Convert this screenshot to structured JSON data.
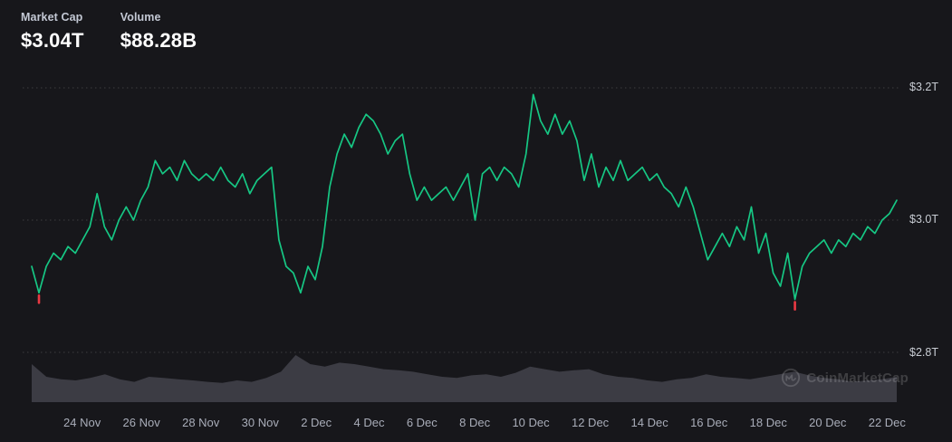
{
  "header": {
    "market_cap_label": "Market Cap",
    "market_cap_value": "$3.04T",
    "volume_label": "Volume",
    "volume_value": "$88.28B"
  },
  "watermark": {
    "text": "CoinMarketCap"
  },
  "chart_data": {
    "type": "line",
    "title": "Total cryptocurrency market capitalization with volume, 23 Nov - 22 Dec",
    "grid": "dotted horizontal lines, labels on right",
    "legend_position": "none",
    "x_tick_labels": [
      "24 Nov",
      "26 Nov",
      "28 Nov",
      "30 Nov",
      "2 Dec",
      "4 Dec",
      "6 Dec",
      "8 Dec",
      "10 Dec",
      "12 Dec",
      "14 Dec",
      "16 Dec",
      "18 Dec",
      "20 Dec",
      "22 Dec"
    ],
    "y_ticks": [
      {
        "label": "$3.2T",
        "value": 3.2
      },
      {
        "label": "$3.0T",
        "value": 3.0
      },
      {
        "label": "$2.8T",
        "value": 2.8
      }
    ],
    "ylim": [
      2.79,
      3.23
    ],
    "series": [
      {
        "name": "Market Cap",
        "unit": "$T",
        "color": "#16c784",
        "values": [
          2.93,
          2.89,
          2.93,
          2.95,
          2.94,
          2.96,
          2.95,
          2.97,
          2.99,
          3.04,
          2.99,
          2.97,
          3.0,
          3.02,
          3.0,
          3.03,
          3.05,
          3.09,
          3.07,
          3.08,
          3.06,
          3.09,
          3.07,
          3.06,
          3.07,
          3.06,
          3.08,
          3.06,
          3.05,
          3.07,
          3.04,
          3.06,
          3.07,
          3.08,
          2.97,
          2.93,
          2.92,
          2.89,
          2.93,
          2.91,
          2.96,
          3.05,
          3.1,
          3.13,
          3.11,
          3.14,
          3.16,
          3.15,
          3.13,
          3.1,
          3.12,
          3.13,
          3.07,
          3.03,
          3.05,
          3.03,
          3.04,
          3.05,
          3.03,
          3.05,
          3.07,
          3.0,
          3.07,
          3.08,
          3.06,
          3.08,
          3.07,
          3.05,
          3.1,
          3.19,
          3.15,
          3.13,
          3.16,
          3.13,
          3.15,
          3.12,
          3.06,
          3.1,
          3.05,
          3.08,
          3.06,
          3.09,
          3.06,
          3.07,
          3.08,
          3.06,
          3.07,
          3.05,
          3.04,
          3.02,
          3.05,
          3.02,
          2.98,
          2.94,
          2.96,
          2.98,
          2.96,
          2.99,
          2.97,
          3.02,
          2.95,
          2.98,
          2.92,
          2.9,
          2.95,
          2.88,
          2.93,
          2.95,
          2.96,
          2.97,
          2.95,
          2.97,
          2.96,
          2.98,
          2.97,
          2.99,
          2.98,
          3.0,
          3.01,
          3.03
        ]
      },
      {
        "name": "Volume",
        "unit": "$B",
        "type": "area",
        "color": "#3c3c44",
        "values": [
          135,
          90,
          81,
          77,
          86,
          99,
          81,
          72,
          90,
          86,
          81,
          77,
          72,
          68,
          77,
          72,
          86,
          108,
          167,
          135,
          126,
          140,
          135,
          126,
          117,
          113,
          108,
          99,
          90,
          86,
          95,
          99,
          90,
          104,
          126,
          117,
          108,
          113,
          117,
          99,
          90,
          86,
          77,
          72,
          81,
          86,
          99,
          90,
          86,
          81,
          90,
          99,
          108,
          95,
          86,
          81,
          72,
          77,
          81,
          90
        ]
      }
    ],
    "drop_marker_indices": [
      1,
      105
    ],
    "drop_marker_color": "#ea3943"
  }
}
